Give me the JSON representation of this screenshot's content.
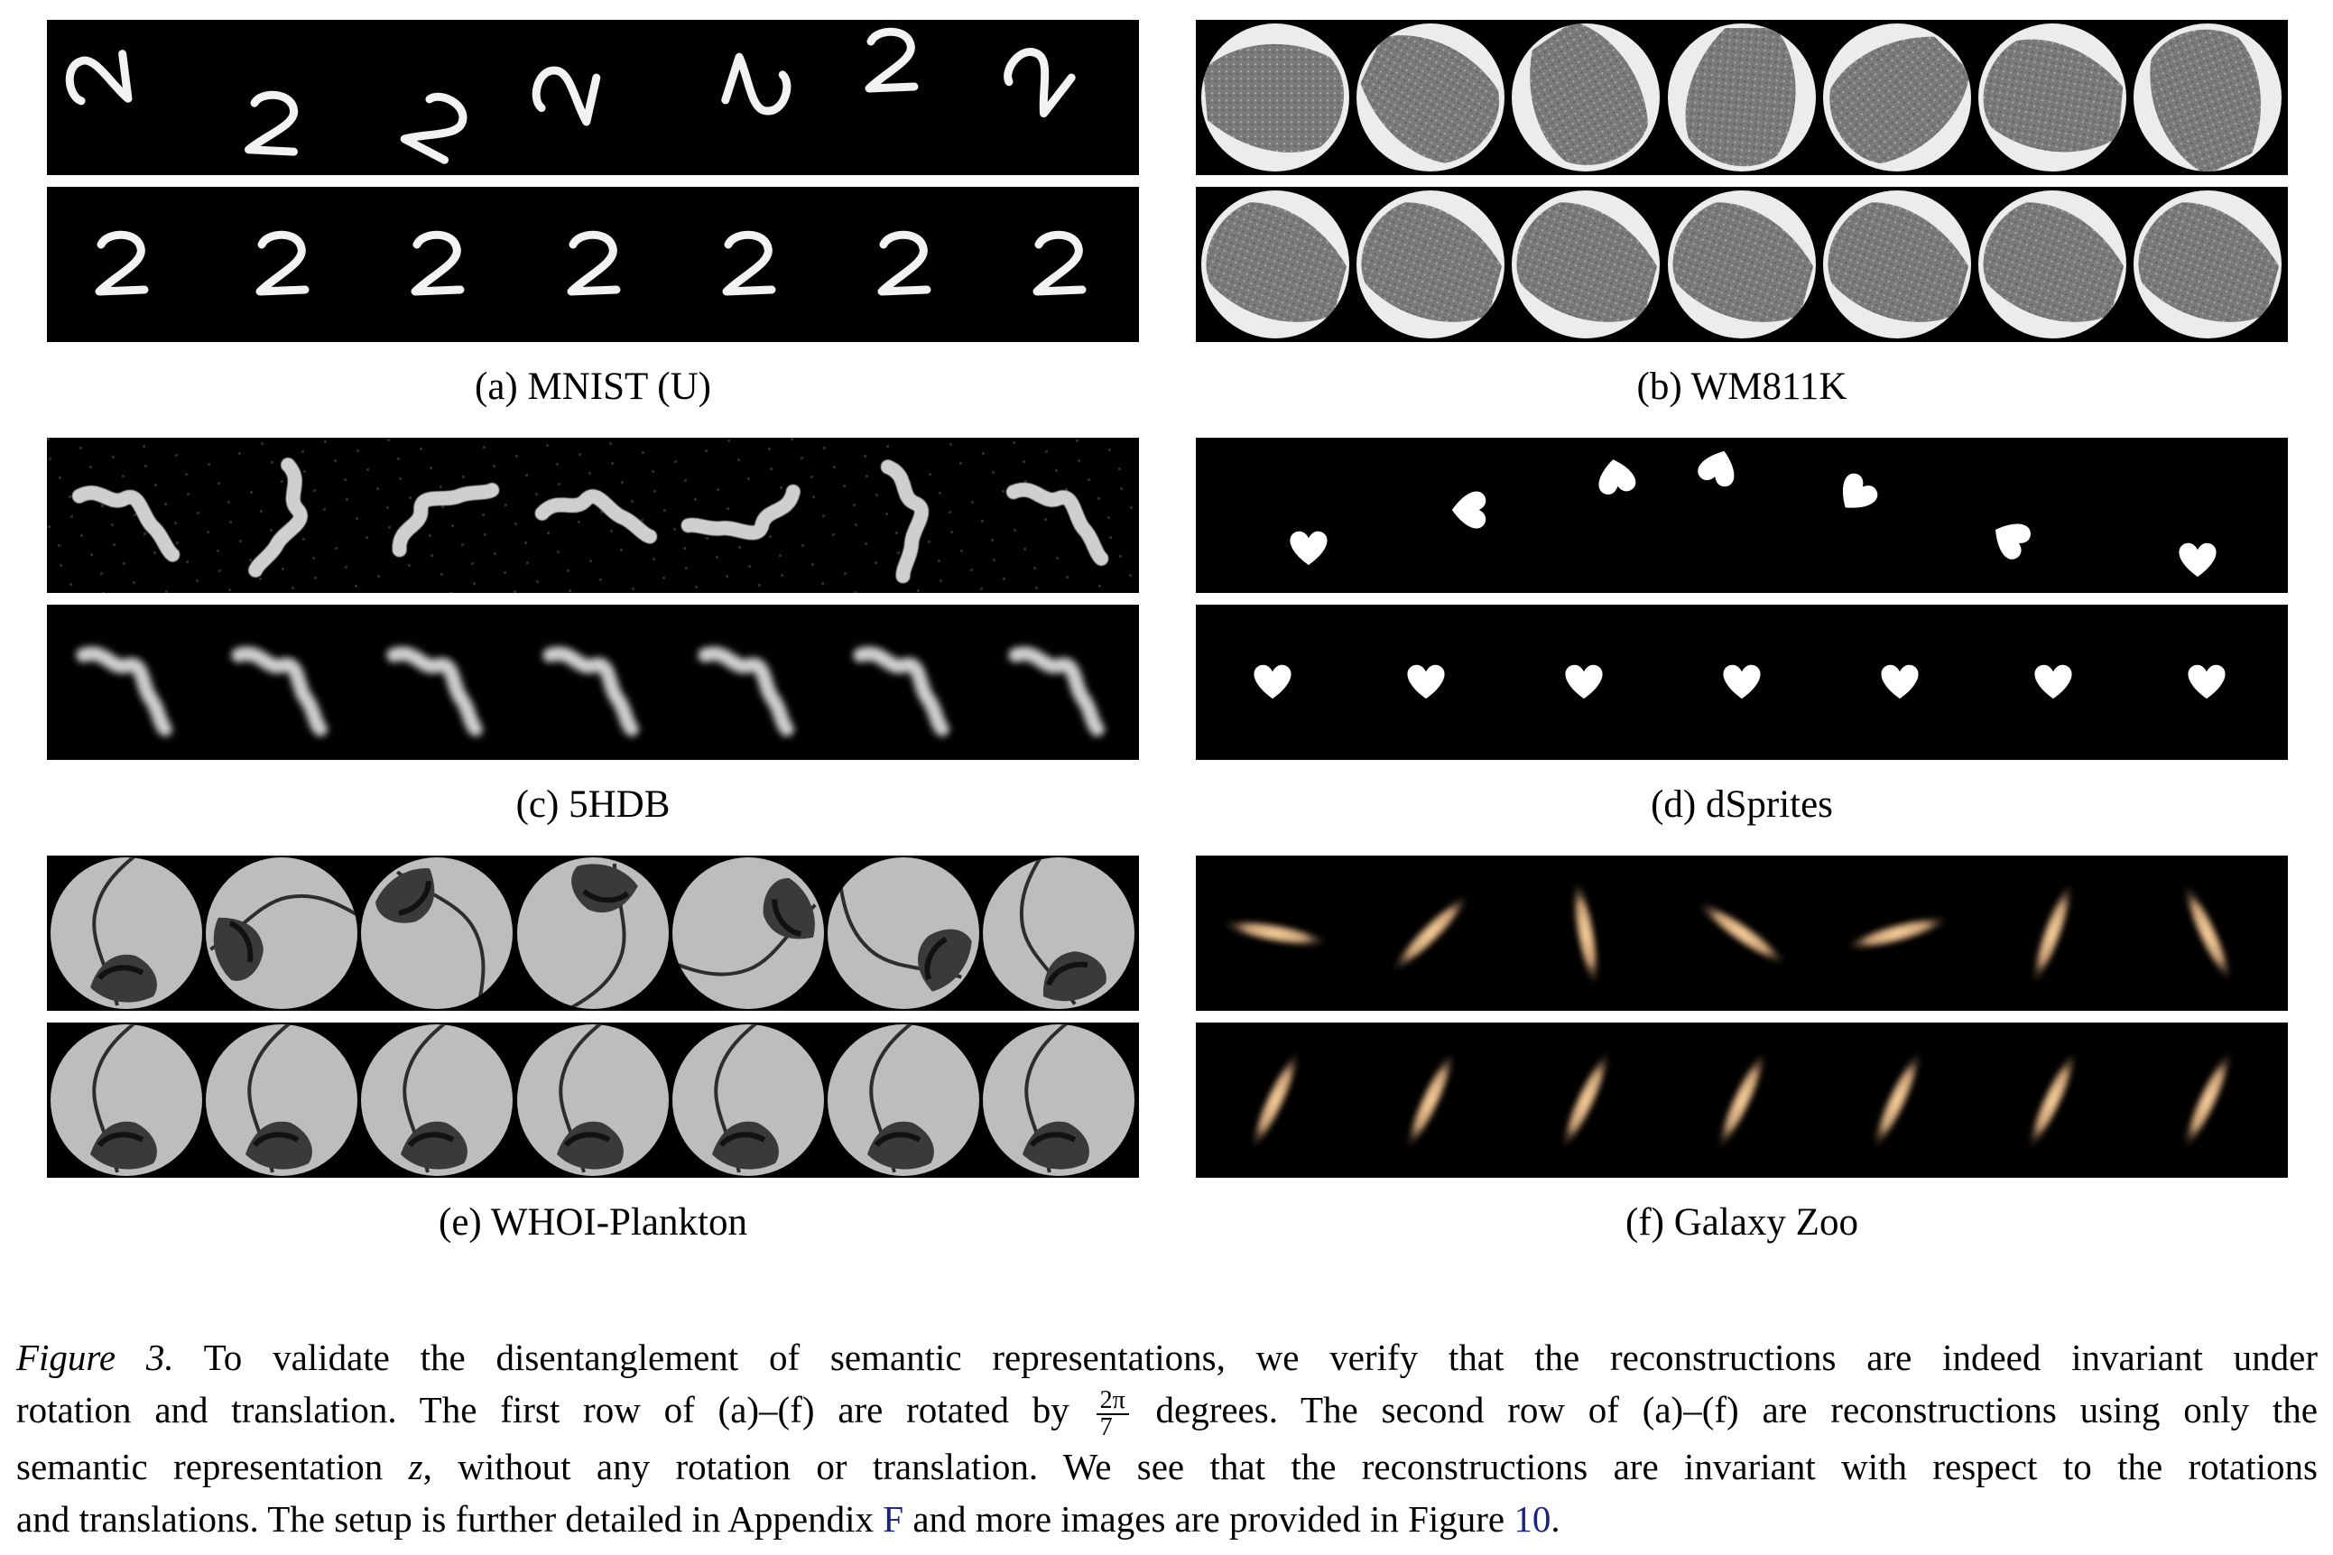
{
  "panels": [
    {
      "id": "a",
      "caption": "(a) MNIST (U)"
    },
    {
      "id": "b",
      "caption": "(b) WM811K"
    },
    {
      "id": "c",
      "caption": "(c) 5HDB"
    },
    {
      "id": "d",
      "caption": "(d) dSprites"
    },
    {
      "id": "e",
      "caption": "(e) WHOI-Plankton"
    },
    {
      "id": "f",
      "caption": "(f) Galaxy Zoo"
    }
  ],
  "figure_caption": {
    "label": "Figure 3.",
    "line1_text": " To validate the disentanglement of semantic representations, we verify that the reconstructions are indeed invariant under",
    "line2_pre": "rotation and translation. The first row of (a)–(f) are rotated by ",
    "frac_num": "2π",
    "frac_den": "7",
    "line2_post": " degrees. The second row of (a)–(f) are reconstructions using only the",
    "line3_pre": "semantic representation ",
    "var_z": "z",
    "line3_post": ", without any rotation or translation. We see that the reconstructions are invariant with respect to the rotations",
    "line4_pre": "and translations. The setup is further detailed in Appendix ",
    "ref_appendix": "F",
    "line4_mid": " and more images are provided in Figure ",
    "ref_figure": "10",
    "line4_post": "."
  },
  "colors": {
    "link": "#1a237e",
    "strip_bg": "#000000"
  }
}
